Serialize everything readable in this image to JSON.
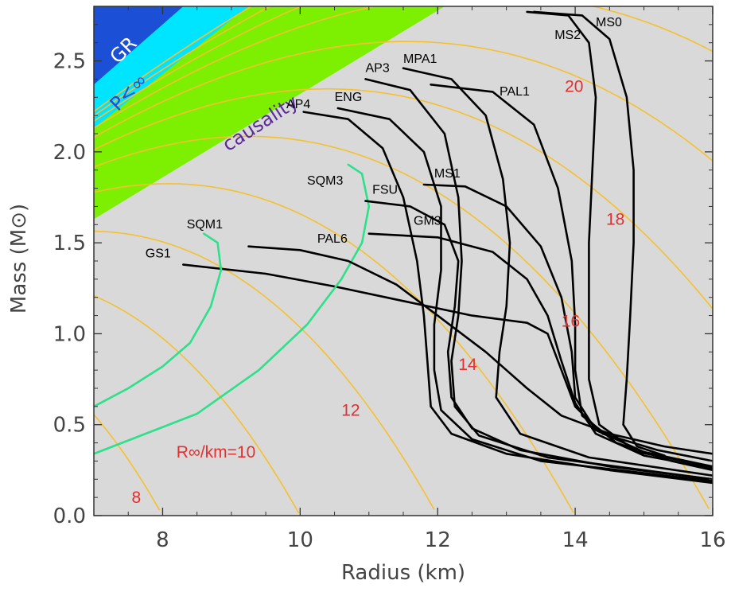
{
  "chart_data": {
    "type": "line",
    "xlabel": "Radius (km)",
    "ylabel": "Mass (M⊙)",
    "xlim": [
      7,
      16
    ],
    "ylim": [
      0,
      2.8
    ],
    "x_ticks": [
      "8",
      "10",
      "12",
      "14",
      "16"
    ],
    "y_ticks": [
      "0.0",
      "0.5",
      "1.0",
      "1.5",
      "2.0",
      "2.5"
    ],
    "x_tick_values": [
      8,
      10,
      12,
      14,
      16
    ],
    "y_tick_values": [
      0,
      0.5,
      1.0,
      1.5,
      2.0,
      2.5
    ],
    "background_color": "#d9d9d9",
    "regions": [
      {
        "name": "GR",
        "label": "GR",
        "color": "#1a4fd6",
        "label_color": "#ffffff"
      },
      {
        "name": "P<inf",
        "label": "P<∞",
        "color": "#00e5ff",
        "label_color": "#1a4fd6"
      },
      {
        "name": "causality",
        "label": "causality",
        "color": "#7cf000",
        "label_color": "#5a2a9a"
      }
    ],
    "radiation_radius_lines": {
      "color": "#f5c030",
      "label_color": "#e23030",
      "labels": [
        {
          "r_inf": 8,
          "text": "8",
          "x": 7.55,
          "y": 0.07
        },
        {
          "r_inf": 10,
          "text": "R∞/km=10",
          "x": 8.2,
          "y": 0.32
        },
        {
          "r_inf": 12,
          "text": "12",
          "x": 10.6,
          "y": 0.55
        },
        {
          "r_inf": 14,
          "text": "14",
          "x": 12.3,
          "y": 0.8
        },
        {
          "r_inf": 16,
          "text": "16",
          "x": 13.8,
          "y": 1.04
        },
        {
          "r_inf": 18,
          "text": "18",
          "x": 14.45,
          "y": 1.6
        },
        {
          "r_inf": 20,
          "text": "20",
          "x": 13.85,
          "y": 2.33
        }
      ]
    },
    "series": [
      {
        "name": "GS1",
        "color": "#000000",
        "label_at": [
          7.75,
          1.42
        ],
        "points": [
          [
            8.3,
            1.38
          ],
          [
            9.5,
            1.33
          ],
          [
            10.5,
            1.26
          ],
          [
            11.5,
            1.18
          ],
          [
            12.5,
            1.1
          ],
          [
            13.3,
            1.06
          ],
          [
            13.6,
            1.0
          ],
          [
            13.8,
            0.8
          ],
          [
            14.0,
            0.6
          ],
          [
            14.4,
            0.45
          ],
          [
            15.2,
            0.36
          ],
          [
            16.0,
            0.3
          ]
        ]
      },
      {
        "name": "SQM1",
        "color": "#2ee08a",
        "label_at": [
          8.35,
          1.58
        ],
        "points": [
          [
            8.6,
            1.55
          ],
          [
            8.8,
            1.5
          ],
          [
            8.85,
            1.35
          ],
          [
            8.7,
            1.15
          ],
          [
            8.4,
            0.95
          ],
          [
            8.0,
            0.82
          ],
          [
            7.5,
            0.7
          ],
          [
            7.0,
            0.6
          ]
        ]
      },
      {
        "name": "SQM3",
        "color": "#2ee08a",
        "label_at": [
          10.1,
          1.82
        ],
        "points": [
          [
            10.7,
            1.93
          ],
          [
            10.9,
            1.88
          ],
          [
            11.0,
            1.7
          ],
          [
            10.9,
            1.5
          ],
          [
            10.6,
            1.3
          ],
          [
            10.1,
            1.05
          ],
          [
            9.4,
            0.8
          ],
          [
            8.5,
            0.56
          ],
          [
            7.0,
            0.34
          ]
        ]
      },
      {
        "name": "PAL6",
        "color": "#000000",
        "label_at": [
          10.25,
          1.5
        ],
        "points": [
          [
            9.25,
            1.48
          ],
          [
            10.0,
            1.46
          ],
          [
            10.7,
            1.4
          ],
          [
            11.4,
            1.27
          ],
          [
            12.0,
            1.1
          ],
          [
            12.7,
            0.9
          ],
          [
            13.3,
            0.7
          ],
          [
            13.8,
            0.55
          ],
          [
            14.5,
            0.45
          ],
          [
            15.3,
            0.38
          ],
          [
            16.0,
            0.34
          ]
        ]
      },
      {
        "name": "GM3",
        "color": "#000000",
        "label_at": [
          11.65,
          1.6
        ],
        "points": [
          [
            11.0,
            1.55
          ],
          [
            12.0,
            1.53
          ],
          [
            12.8,
            1.45
          ],
          [
            13.3,
            1.3
          ],
          [
            13.6,
            1.1
          ],
          [
            13.8,
            0.85
          ],
          [
            14.0,
            0.62
          ],
          [
            14.3,
            0.45
          ],
          [
            15.0,
            0.33
          ],
          [
            16.0,
            0.26
          ]
        ]
      },
      {
        "name": "FSU",
        "color": "#000000",
        "label_at": [
          11.05,
          1.77
        ],
        "points": [
          [
            10.95,
            1.73
          ],
          [
            11.6,
            1.7
          ],
          [
            12.1,
            1.6
          ],
          [
            12.3,
            1.4
          ],
          [
            12.25,
            1.15
          ],
          [
            12.15,
            0.9
          ],
          [
            12.2,
            0.65
          ],
          [
            12.5,
            0.48
          ],
          [
            13.2,
            0.36
          ],
          [
            14.5,
            0.27
          ],
          [
            16.0,
            0.2
          ]
        ]
      },
      {
        "name": "MS1",
        "color": "#000000",
        "label_at": [
          11.95,
          1.86
        ],
        "points": [
          [
            11.8,
            1.82
          ],
          [
            12.4,
            1.81
          ],
          [
            13.0,
            1.7
          ],
          [
            13.5,
            1.48
          ],
          [
            13.8,
            1.2
          ],
          [
            13.95,
            0.9
          ],
          [
            14.0,
            0.65
          ],
          [
            14.3,
            0.47
          ],
          [
            15.0,
            0.35
          ],
          [
            16.0,
            0.27
          ]
        ]
      },
      {
        "name": "AP4",
        "color": "#000000",
        "label_at": [
          9.8,
          2.24
        ],
        "points": [
          [
            10.05,
            2.22
          ],
          [
            10.7,
            2.18
          ],
          [
            11.2,
            2.02
          ],
          [
            11.5,
            1.75
          ],
          [
            11.7,
            1.4
          ],
          [
            11.8,
            1.1
          ],
          [
            11.85,
            0.85
          ],
          [
            11.9,
            0.6
          ],
          [
            12.2,
            0.45
          ],
          [
            13.0,
            0.34
          ],
          [
            14.5,
            0.25
          ],
          [
            16.0,
            0.18
          ]
        ]
      },
      {
        "name": "ENG",
        "color": "#000000",
        "label_at": [
          10.5,
          2.28
        ],
        "points": [
          [
            10.55,
            2.24
          ],
          [
            11.3,
            2.18
          ],
          [
            11.8,
            2.0
          ],
          [
            12.05,
            1.7
          ],
          [
            12.05,
            1.35
          ],
          [
            11.95,
            1.05
          ],
          [
            11.95,
            0.8
          ],
          [
            12.05,
            0.58
          ],
          [
            12.5,
            0.42
          ],
          [
            13.5,
            0.3
          ],
          [
            16.0,
            0.19
          ]
        ]
      },
      {
        "name": "AP3",
        "color": "#000000",
        "label_at": [
          10.95,
          2.44
        ],
        "points": [
          [
            10.95,
            2.4
          ],
          [
            11.6,
            2.34
          ],
          [
            12.1,
            2.1
          ],
          [
            12.3,
            1.75
          ],
          [
            12.35,
            1.4
          ],
          [
            12.3,
            1.1
          ],
          [
            12.2,
            0.85
          ],
          [
            12.25,
            0.6
          ],
          [
            12.6,
            0.44
          ],
          [
            13.6,
            0.32
          ],
          [
            16.0,
            0.2
          ]
        ]
      },
      {
        "name": "MPA1",
        "color": "#000000",
        "label_at": [
          11.5,
          2.49
        ],
        "points": [
          [
            11.5,
            2.46
          ],
          [
            12.2,
            2.4
          ],
          [
            12.7,
            2.2
          ],
          [
            12.95,
            1.85
          ],
          [
            13.05,
            1.5
          ],
          [
            13.0,
            1.15
          ],
          [
            12.9,
            0.9
          ],
          [
            12.85,
            0.65
          ],
          [
            13.2,
            0.45
          ],
          [
            14.2,
            0.32
          ],
          [
            16.0,
            0.22
          ]
        ]
      },
      {
        "name": "PAL1",
        "color": "#000000",
        "label_at": [
          12.9,
          2.31
        ],
        "points": [
          [
            11.9,
            2.37
          ],
          [
            12.8,
            2.33
          ],
          [
            13.4,
            2.15
          ],
          [
            13.75,
            1.8
          ],
          [
            13.95,
            1.4
          ],
          [
            14.0,
            1.05
          ],
          [
            14.0,
            0.8
          ],
          [
            14.1,
            0.55
          ],
          [
            14.6,
            0.4
          ],
          [
            15.4,
            0.3
          ],
          [
            16.0,
            0.25
          ]
        ]
      },
      {
        "name": "MS2",
        "color": "#000000",
        "label_at": [
          13.7,
          2.62
        ],
        "points": [
          [
            13.3,
            2.77
          ],
          [
            13.9,
            2.75
          ],
          [
            14.2,
            2.6
          ],
          [
            14.3,
            2.3
          ],
          [
            14.25,
            1.9
          ],
          [
            14.2,
            1.5
          ],
          [
            14.2,
            1.1
          ],
          [
            14.2,
            0.75
          ],
          [
            14.35,
            0.5
          ],
          [
            14.9,
            0.35
          ],
          [
            16.0,
            0.27
          ]
        ]
      },
      {
        "name": "MS0",
        "color": "#000000",
        "label_at": [
          14.3,
          2.69
        ],
        "points": [
          [
            13.4,
            2.77
          ],
          [
            14.1,
            2.75
          ],
          [
            14.5,
            2.62
          ],
          [
            14.75,
            2.3
          ],
          [
            14.85,
            1.9
          ],
          [
            14.85,
            1.5
          ],
          [
            14.8,
            1.1
          ],
          [
            14.75,
            0.75
          ],
          [
            14.7,
            0.5
          ],
          [
            14.9,
            0.38
          ],
          [
            15.3,
            0.33
          ]
        ]
      }
    ]
  }
}
